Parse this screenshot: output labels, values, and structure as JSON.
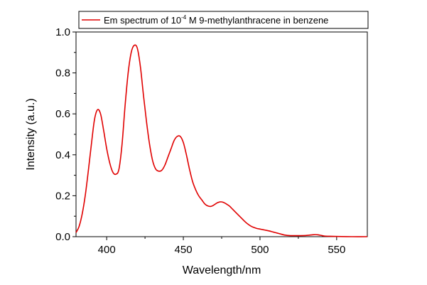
{
  "chart_data": {
    "type": "line",
    "xlabel": "Wavelength/nm",
    "ylabel": "Intensity (a.u.)",
    "xlim": [
      380,
      570
    ],
    "ylim": [
      0.0,
      1.0
    ],
    "x_ticks": [
      400,
      450,
      500,
      550
    ],
    "x_tick_labels": [
      "400",
      "450",
      "500",
      "550"
    ],
    "y_ticks": [
      0.0,
      0.2,
      0.4,
      0.6,
      0.8,
      1.0
    ],
    "y_tick_labels": [
      "0.0",
      "0.2",
      "0.4",
      "0.6",
      "0.8",
      "1.0"
    ],
    "grid": false,
    "legend": {
      "position": "top",
      "prefix": "Em spectrum of 10",
      "superscript": "-4",
      "suffix": " M 9-methylanthracene in benzene"
    },
    "series": [
      {
        "color": "#e00000",
        "points": [
          [
            380,
            0.02
          ],
          [
            382,
            0.05
          ],
          [
            384,
            0.11
          ],
          [
            386,
            0.2
          ],
          [
            388,
            0.32
          ],
          [
            390,
            0.45
          ],
          [
            392,
            0.57
          ],
          [
            394,
            0.62
          ],
          [
            396,
            0.6
          ],
          [
            398,
            0.52
          ],
          [
            400,
            0.43
          ],
          [
            402,
            0.36
          ],
          [
            404,
            0.315
          ],
          [
            406,
            0.305
          ],
          [
            408,
            0.33
          ],
          [
            410,
            0.45
          ],
          [
            412,
            0.64
          ],
          [
            414,
            0.8
          ],
          [
            416,
            0.9
          ],
          [
            418,
            0.935
          ],
          [
            420,
            0.92
          ],
          [
            422,
            0.83
          ],
          [
            424,
            0.69
          ],
          [
            426,
            0.56
          ],
          [
            428,
            0.45
          ],
          [
            430,
            0.37
          ],
          [
            432,
            0.33
          ],
          [
            434,
            0.32
          ],
          [
            436,
            0.325
          ],
          [
            438,
            0.35
          ],
          [
            440,
            0.39
          ],
          [
            442,
            0.43
          ],
          [
            444,
            0.47
          ],
          [
            446,
            0.49
          ],
          [
            448,
            0.49
          ],
          [
            450,
            0.46
          ],
          [
            452,
            0.4
          ],
          [
            454,
            0.33
          ],
          [
            456,
            0.27
          ],
          [
            458,
            0.23
          ],
          [
            460,
            0.2
          ],
          [
            462,
            0.18
          ],
          [
            464,
            0.16
          ],
          [
            466,
            0.15
          ],
          [
            468,
            0.148
          ],
          [
            470,
            0.155
          ],
          [
            472,
            0.165
          ],
          [
            474,
            0.17
          ],
          [
            476,
            0.168
          ],
          [
            478,
            0.16
          ],
          [
            480,
            0.15
          ],
          [
            482,
            0.135
          ],
          [
            484,
            0.12
          ],
          [
            486,
            0.105
          ],
          [
            488,
            0.09
          ],
          [
            490,
            0.075
          ],
          [
            492,
            0.062
          ],
          [
            494,
            0.052
          ],
          [
            496,
            0.045
          ],
          [
            498,
            0.04
          ],
          [
            500,
            0.037
          ],
          [
            502,
            0.034
          ],
          [
            504,
            0.031
          ],
          [
            506,
            0.028
          ],
          [
            508,
            0.024
          ],
          [
            510,
            0.02
          ],
          [
            512,
            0.016
          ],
          [
            514,
            0.012
          ],
          [
            516,
            0.008
          ],
          [
            518,
            0.006
          ],
          [
            520,
            0.005
          ],
          [
            525,
            0.005
          ],
          [
            530,
            0.006
          ],
          [
            534,
            0.009
          ],
          [
            536,
            0.01
          ],
          [
            538,
            0.009
          ],
          [
            540,
            0.006
          ],
          [
            542,
            0.003
          ],
          [
            545,
            0.002
          ],
          [
            550,
            0.001
          ],
          [
            560,
            0.0
          ],
          [
            570,
            0.0
          ]
        ]
      }
    ]
  }
}
